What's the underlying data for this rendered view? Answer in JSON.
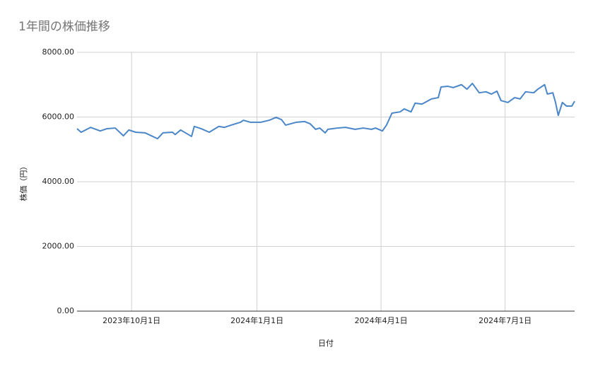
{
  "chart_data": {
    "type": "line",
    "title": "1年間の株価推移",
    "y_label": "株価（円）",
    "x_label": "日付",
    "color": "#4a86c8",
    "grid": true,
    "x": [
      "2023-08-22",
      "2023-08-25",
      "2023-09-01",
      "2023-09-08",
      "2023-09-13",
      "2023-09-19",
      "2023-09-25",
      "2023-09-29",
      "2023-10-04",
      "2023-10-11",
      "2023-10-20",
      "2023-10-24",
      "2023-10-31",
      "2023-11-02",
      "2023-11-06",
      "2023-11-14",
      "2023-11-16",
      "2023-11-21",
      "2023-11-27",
      "2023-12-04",
      "2023-12-08",
      "2023-12-13",
      "2023-12-20",
      "2023-12-22",
      "2023-12-27",
      "2024-01-04",
      "2024-01-10",
      "2024-01-15",
      "2024-01-19",
      "2024-01-22",
      "2024-01-30",
      "2024-02-05",
      "2024-02-09",
      "2024-02-13",
      "2024-02-16",
      "2024-02-20",
      "2024-02-22",
      "2024-02-29",
      "2024-03-06",
      "2024-03-13",
      "2024-03-19",
      "2024-03-25",
      "2024-03-28",
      "2024-04-02",
      "2024-04-05",
      "2024-04-09",
      "2024-04-15",
      "2024-04-18",
      "2024-04-23",
      "2024-04-26",
      "2024-05-01",
      "2024-05-08",
      "2024-05-13",
      "2024-05-15",
      "2024-05-20",
      "2024-05-24",
      "2024-05-30",
      "2024-06-03",
      "2024-06-07",
      "2024-06-12",
      "2024-06-17",
      "2024-06-21",
      "2024-06-25",
      "2024-06-28",
      "2024-07-03",
      "2024-07-08",
      "2024-07-12",
      "2024-07-16",
      "2024-07-22",
      "2024-07-25",
      "2024-07-30",
      "2024-08-01",
      "2024-08-05",
      "2024-08-07",
      "2024-08-09",
      "2024-08-12",
      "2024-08-15",
      "2024-08-19",
      "2024-08-21"
    ],
    "values": [
      5640,
      5530,
      5680,
      5570,
      5640,
      5660,
      5420,
      5600,
      5530,
      5510,
      5330,
      5510,
      5530,
      5460,
      5600,
      5400,
      5710,
      5640,
      5530,
      5710,
      5680,
      5750,
      5840,
      5900,
      5840,
      5840,
      5900,
      5990,
      5920,
      5750,
      5840,
      5860,
      5790,
      5620,
      5660,
      5510,
      5620,
      5660,
      5680,
      5620,
      5660,
      5620,
      5660,
      5570,
      5750,
      6120,
      6160,
      6250,
      6160,
      6430,
      6400,
      6560,
      6600,
      6930,
      6950,
      6910,
      7000,
      6860,
      7040,
      6750,
      6780,
      6710,
      6800,
      6510,
      6450,
      6600,
      6560,
      6780,
      6750,
      6860,
      7000,
      6710,
      6750,
      6450,
      6050,
      6450,
      6340,
      6340,
      6490
    ],
    "xlim": [
      "2023-08-22",
      "2024-08-21"
    ],
    "xticks": [
      {
        "value": "2023-10-01",
        "label": "2023年10月1日"
      },
      {
        "value": "2024-01-01",
        "label": "2024年1月1日"
      },
      {
        "value": "2024-04-01",
        "label": "2024年4月1日"
      },
      {
        "value": "2024-07-01",
        "label": "2024年7月1日"
      }
    ],
    "ylim": [
      0,
      8000
    ],
    "yticks": [
      {
        "value": 0,
        "label": "0.00"
      },
      {
        "value": 2000,
        "label": "2000.00"
      },
      {
        "value": 4000,
        "label": "4000.00"
      },
      {
        "value": 6000,
        "label": "6000.00"
      },
      {
        "value": 8000,
        "label": "8000.00"
      }
    ]
  }
}
